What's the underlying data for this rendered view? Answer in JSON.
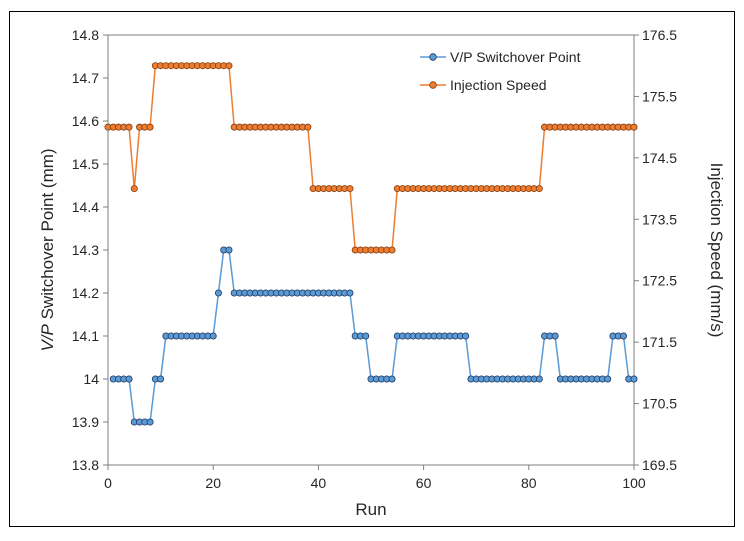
{
  "chart_data": {
    "type": "line",
    "xlabel": "Run",
    "ylabel_left_italic": "V/P",
    "ylabel_left_rest": " Switchover  Point (mm)",
    "ylabel_right": "Injection Speed (mm/s)",
    "xlim": [
      0,
      100
    ],
    "ylim_left": [
      13.8,
      14.8
    ],
    "ylim_right": [
      169.5,
      176.5
    ],
    "xticks": [
      "0",
      "20",
      "40",
      "60",
      "80",
      "100"
    ],
    "yticks_left": [
      "13.8",
      "13.9",
      "14",
      "14.1",
      "14.2",
      "14.3",
      "14.4",
      "14.5",
      "14.6",
      "14.7",
      "14.8"
    ],
    "yticks_right": [
      "169.5",
      "170.5",
      "171.5",
      "172.5",
      "173.5",
      "174.5",
      "175.5",
      "176.5"
    ],
    "legend_position": "top-right",
    "series": [
      {
        "name": "V/P Switchover Point",
        "axis": "left",
        "color": "#5b9bd5",
        "x": [
          1,
          2,
          3,
          4,
          5,
          6,
          7,
          8,
          9,
          10,
          11,
          12,
          13,
          14,
          15,
          16,
          17,
          18,
          19,
          20,
          21,
          22,
          23,
          24,
          25,
          26,
          27,
          28,
          29,
          30,
          31,
          32,
          33,
          34,
          35,
          36,
          37,
          38,
          39,
          40,
          41,
          42,
          43,
          44,
          45,
          46,
          47,
          48,
          49,
          50,
          51,
          52,
          53,
          54,
          55,
          56,
          57,
          58,
          59,
          60,
          61,
          62,
          63,
          64,
          65,
          66,
          67,
          68,
          69,
          70,
          71,
          72,
          73,
          74,
          75,
          76,
          77,
          78,
          79,
          80,
          81,
          82,
          83,
          84,
          85,
          86,
          87,
          88,
          89,
          90,
          91,
          92,
          93,
          94,
          95,
          96,
          97,
          98,
          99,
          100
        ],
        "values": [
          14.0,
          14.0,
          14.0,
          14.0,
          13.9,
          13.9,
          13.9,
          13.9,
          14.0,
          14.0,
          14.1,
          14.1,
          14.1,
          14.1,
          14.1,
          14.1,
          14.1,
          14.1,
          14.1,
          14.1,
          14.2,
          14.3,
          14.3,
          14.2,
          14.2,
          14.2,
          14.2,
          14.2,
          14.2,
          14.2,
          14.2,
          14.2,
          14.2,
          14.2,
          14.2,
          14.2,
          14.2,
          14.2,
          14.2,
          14.2,
          14.2,
          14.2,
          14.2,
          14.2,
          14.2,
          14.2,
          14.1,
          14.1,
          14.1,
          14.0,
          14.0,
          14.0,
          14.0,
          14.0,
          14.1,
          14.1,
          14.1,
          14.1,
          14.1,
          14.1,
          14.1,
          14.1,
          14.1,
          14.1,
          14.1,
          14.1,
          14.1,
          14.1,
          14.0,
          14.0,
          14.0,
          14.0,
          14.0,
          14.0,
          14.0,
          14.0,
          14.0,
          14.0,
          14.0,
          14.0,
          14.0,
          14.0,
          14.1,
          14.1,
          14.1,
          14.0,
          14.0,
          14.0,
          14.0,
          14.0,
          14.0,
          14.0,
          14.0,
          14.0,
          14.0,
          14.1,
          14.1,
          14.1,
          14.0,
          14.0
        ]
      },
      {
        "name": "Injection Speed",
        "axis": "right",
        "color": "#ed7d31",
        "x": [
          0,
          1,
          2,
          3,
          4,
          5,
          6,
          7,
          8,
          9,
          10,
          11,
          12,
          13,
          14,
          15,
          16,
          17,
          18,
          19,
          20,
          21,
          22,
          23,
          24,
          25,
          26,
          27,
          28,
          29,
          30,
          31,
          32,
          33,
          34,
          35,
          36,
          37,
          38,
          39,
          40,
          41,
          42,
          43,
          44,
          45,
          46,
          47,
          48,
          49,
          50,
          51,
          52,
          53,
          54,
          55,
          56,
          57,
          58,
          59,
          60,
          61,
          62,
          63,
          64,
          65,
          66,
          67,
          68,
          69,
          70,
          71,
          72,
          73,
          74,
          75,
          76,
          77,
          78,
          79,
          80,
          81,
          82,
          83,
          84,
          85,
          86,
          87,
          88,
          89,
          90,
          91,
          92,
          93,
          94,
          95,
          96,
          97,
          98,
          99,
          100
        ],
        "values": [
          175,
          175,
          175,
          175,
          175,
          174,
          175,
          175,
          175,
          176,
          176,
          176,
          176,
          176,
          176,
          176,
          176,
          176,
          176,
          176,
          176,
          176,
          176,
          176,
          175,
          175,
          175,
          175,
          175,
          175,
          175,
          175,
          175,
          175,
          175,
          175,
          175,
          175,
          175,
          174,
          174,
          174,
          174,
          174,
          174,
          174,
          174,
          173,
          173,
          173,
          173,
          173,
          173,
          173,
          173,
          174,
          174,
          174,
          174,
          174,
          174,
          174,
          174,
          174,
          174,
          174,
          174,
          174,
          174,
          174,
          174,
          174,
          174,
          174,
          174,
          174,
          174,
          174,
          174,
          174,
          174,
          174,
          174,
          175,
          175,
          175,
          175,
          175,
          175,
          175,
          175,
          175,
          175,
          175,
          175,
          175,
          175,
          175,
          175,
          175,
          175
        ]
      }
    ]
  }
}
